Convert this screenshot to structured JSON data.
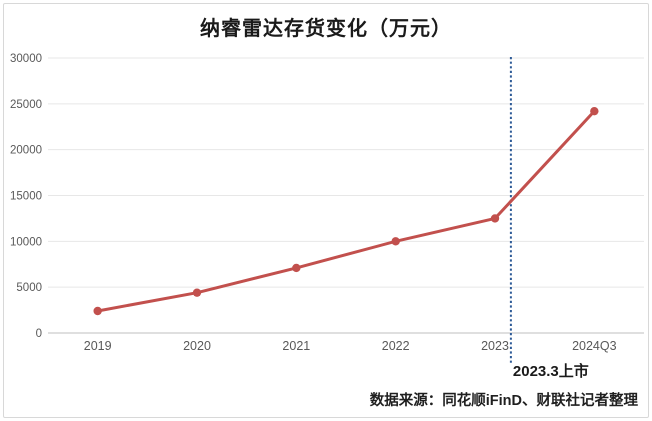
{
  "chart_data": {
    "type": "line",
    "title": "纳睿雷达存货变化（万元）",
    "categories": [
      "2019",
      "2020",
      "2021",
      "2022",
      "2023",
      "2024Q3"
    ],
    "series": [
      {
        "color": "#C2504D",
        "values": [
          2400,
          4400,
          7100,
          10000,
          12500,
          24200
        ]
      }
    ],
    "ylim": [
      0,
      30000
    ],
    "y_ticks": [
      0,
      5000,
      10000,
      15000,
      20000,
      25000,
      30000
    ],
    "grid": true,
    "legend_position": "none",
    "marker_style": "circle",
    "annotation": {
      "label": "2023.3上市",
      "x_index": 4.16,
      "line_color": "#2E5B97",
      "line_style": "dotted"
    }
  },
  "footer": {
    "source_note": "数据来源：同花顺iFinD、财联社记者整理"
  },
  "colors": {
    "background": "#FFFFFF",
    "border": "#D8D8D8",
    "gridline": "#E7E7E7",
    "axis_line": "#BFBFBF",
    "axis_label": "#595959",
    "title_text": "#1A1A1A",
    "annotation_text": "#1A1A1A",
    "source_text": "#1F1F1F",
    "line_red": "#C2504D",
    "dotted_blue": "#2E5B97"
  }
}
